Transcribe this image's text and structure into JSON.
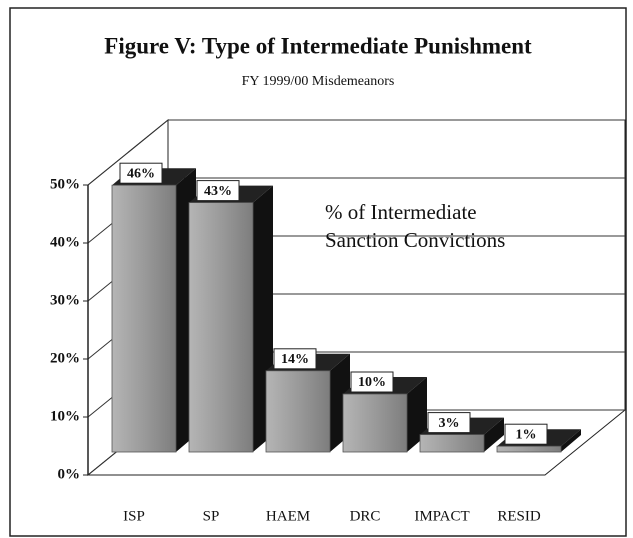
{
  "chart_data": {
    "type": "bar3d",
    "title": "Figure V:  Type of Intermediate Punishment",
    "subtitle": "FY 1999/00 Misdemeanors",
    "annotation": [
      "% of Intermediate",
      "Sanction Convictions"
    ],
    "categories": [
      "ISP",
      "SP",
      "HAEM",
      "DRC",
      "IMPACT",
      "RESID"
    ],
    "values": [
      46,
      43,
      14,
      10,
      3,
      1
    ],
    "value_labels": [
      "46%",
      "43%",
      "14%",
      "10%",
      "3%",
      "1%"
    ],
    "color": "#8f8f8f",
    "ylim": [
      0,
      50
    ],
    "yticks": [
      {
        "value": 0,
        "label": "0%"
      },
      {
        "value": 10,
        "label": "10%"
      },
      {
        "value": 20,
        "label": "20%"
      },
      {
        "value": 30,
        "label": "30%"
      },
      {
        "value": 40,
        "label": "40%"
      },
      {
        "value": 50,
        "label": "50%"
      }
    ],
    "grid": true
  }
}
